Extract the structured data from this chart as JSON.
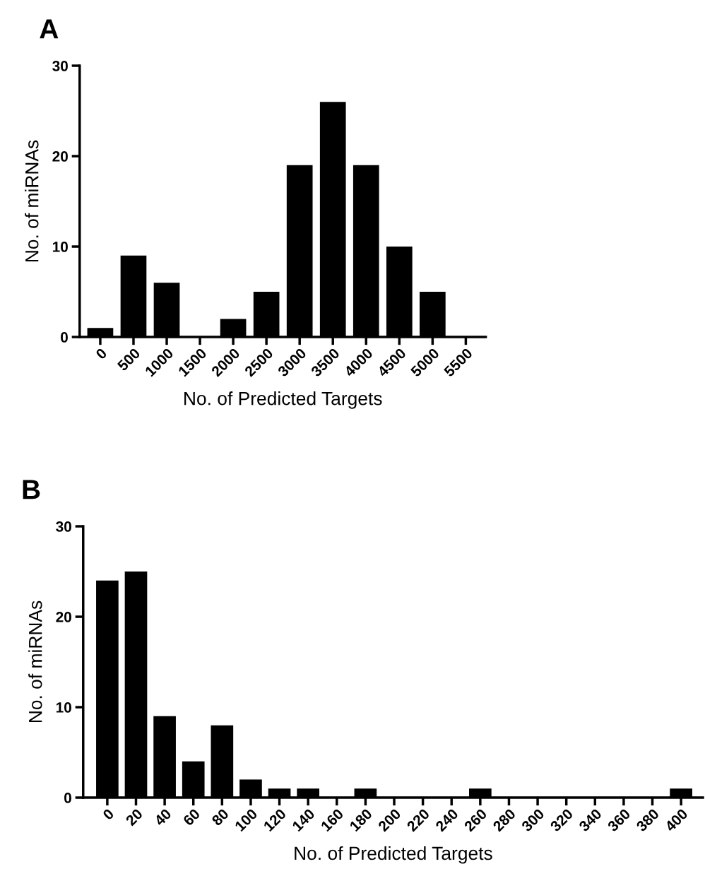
{
  "chart_data": [
    {
      "type": "bar",
      "title": "A",
      "xlabel": "No. of Predicted Targets",
      "ylabel": "No. of miRNAs",
      "categories": [
        "0",
        "500",
        "1000",
        "1500",
        "2000",
        "2500",
        "3000",
        "3500",
        "4000",
        "4500",
        "5000",
        "5500"
      ],
      "values": [
        1,
        9,
        6,
        0,
        2,
        5,
        19,
        26,
        19,
        10,
        5,
        0
      ],
      "color": "#000000",
      "ylim": [
        0,
        30
      ],
      "yticks": [
        0,
        10,
        20,
        30
      ],
      "grid": false,
      "legend": false
    },
    {
      "type": "bar",
      "title": "B",
      "xlabel": "No. of Predicted Targets",
      "ylabel": "No. of miRNAs",
      "categories": [
        "0",
        "20",
        "40",
        "60",
        "80",
        "100",
        "120",
        "140",
        "160",
        "180",
        "200",
        "220",
        "240",
        "260",
        "280",
        "300",
        "320",
        "340",
        "360",
        "380",
        "400"
      ],
      "values": [
        24,
        25,
        9,
        4,
        8,
        2,
        1,
        1,
        0,
        1,
        0,
        0,
        0,
        1,
        0,
        0,
        0,
        0,
        0,
        0,
        1
      ],
      "color": "#000000",
      "ylim": [
        0,
        30
      ],
      "yticks": [
        0,
        10,
        20,
        30
      ],
      "grid": false,
      "legend": false
    }
  ]
}
